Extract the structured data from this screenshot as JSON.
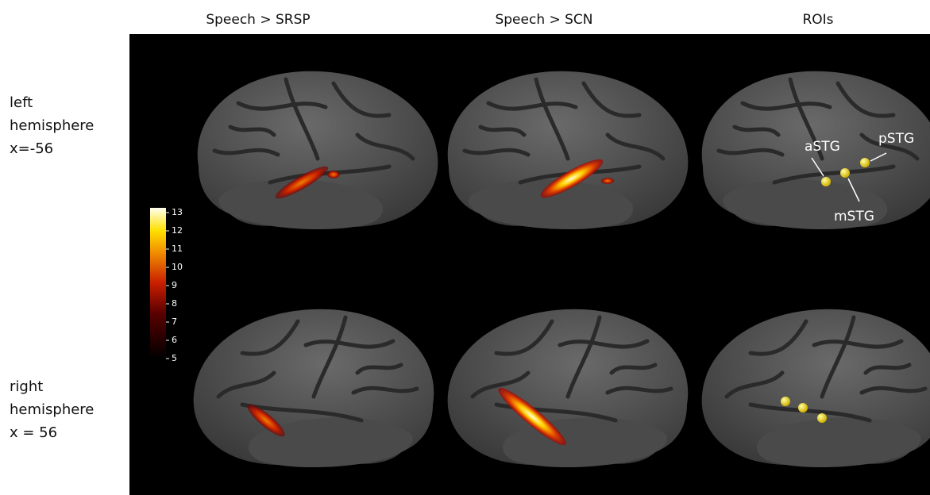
{
  "columns": [
    "Speech > SRSP",
    "Speech > SCN",
    "ROIs"
  ],
  "rows": [
    {
      "lines": [
        "left",
        "hemisphere",
        "x=-56"
      ]
    },
    {
      "lines": [
        "right",
        "hemisphere",
        "x = 56"
      ]
    }
  ],
  "colorbar": {
    "lim": [
      5,
      13
    ],
    "ticks": [
      5,
      6,
      7,
      8,
      9,
      10,
      11,
      12,
      13
    ]
  },
  "roi_labels": [
    "aSTG",
    "mSTG",
    "pSTG"
  ]
}
